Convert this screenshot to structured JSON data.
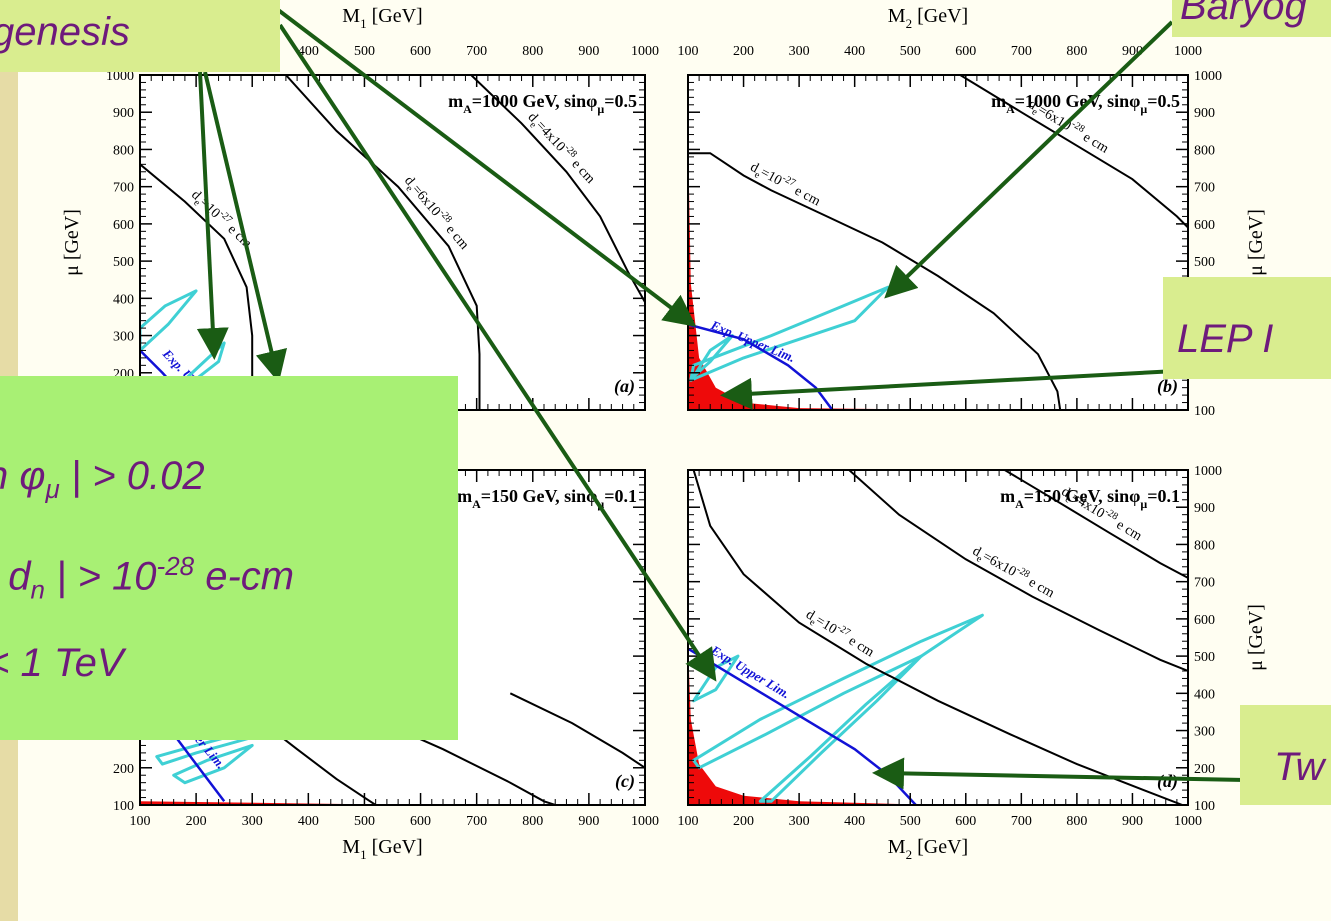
{
  "callouts": {
    "baryogenesis_left": "genesis",
    "baryogenesis_right": "Baryog",
    "lep": "LEP I",
    "two_loop": "Tw"
  },
  "constraints": {
    "line1": {
      "prefix": "n ",
      "symbol": "φ",
      "sub": "μ",
      "suffix": " | > 0.02"
    },
    "line2": {
      "pre": ", d",
      "sub": "n",
      "mid": " | > 10",
      "sup": "-28",
      "post": " e-cm"
    },
    "line3": "< 1 TeV"
  },
  "chart_data": [
    {
      "type": "line",
      "panel_label": "(a)",
      "annotation": "m_A=1000 GeV, sinφ_μ=0.5",
      "xlabel": "M_1  [GeV]",
      "ylabel": "μ  [GeV]",
      "xlim": [
        100,
        1000
      ],
      "ylim": [
        100,
        1000
      ],
      "x_ticks": [
        "100",
        "200",
        "300",
        "400",
        "500",
        "600",
        "700",
        "800",
        "900",
        "1000"
      ],
      "y_ticks": [
        "100",
        "200",
        "300",
        "400",
        "500",
        "600",
        "700",
        "800",
        "900",
        "1000"
      ],
      "contours": [
        {
          "label": "d_e=10^-27 e cm",
          "points": [
            [
              100,
              760
            ],
            [
              180,
              660
            ],
            [
              250,
              560
            ],
            [
              290,
              430
            ],
            [
              300,
              300
            ],
            [
              300,
              100
            ]
          ]
        },
        {
          "label": "d_e=6x10^-28 e cm",
          "points": [
            [
              360,
              1000
            ],
            [
              450,
              850
            ],
            [
              560,
              700
            ],
            [
              650,
              540
            ],
            [
              700,
              380
            ],
            [
              705,
              250
            ],
            [
              705,
              100
            ]
          ]
        },
        {
          "label": "d_e=4x10^-28 e cm",
          "points": [
            [
              690,
              1000
            ],
            [
              780,
              870
            ],
            [
              860,
              740
            ],
            [
              920,
              620
            ],
            [
              970,
              470
            ],
            [
              1000,
              390
            ]
          ]
        }
      ],
      "exp_upper_limit": [
        [
          100,
          260
        ],
        [
          140,
          200
        ],
        [
          170,
          150
        ]
      ],
      "baryogenesis_regions": [
        [
          [
            100,
            320
          ],
          [
            145,
            380
          ],
          [
            200,
            420
          ],
          [
            150,
            330
          ],
          [
            100,
            260
          ]
        ],
        [
          [
            150,
            140
          ],
          [
            200,
            210
          ],
          [
            250,
            280
          ],
          [
            240,
            230
          ],
          [
            180,
            160
          ]
        ]
      ],
      "excluded_region": [
        [
          100,
          100
        ],
        [
          100,
          130
        ],
        [
          140,
          110
        ],
        [
          170,
          100
        ]
      ]
    },
    {
      "type": "line",
      "panel_label": "(b)",
      "annotation": "m_A=1000 GeV, sinφ_μ=0.5",
      "xlabel": "M_2  [GeV]",
      "ylabel": "μ  [GeV]",
      "xlim": [
        100,
        1000
      ],
      "ylim": [
        100,
        1000
      ],
      "x_ticks": [
        "100",
        "200",
        "300",
        "400",
        "500",
        "600",
        "700",
        "800",
        "900",
        "1000"
      ],
      "y_ticks": [
        "100",
        "200",
        "300",
        "400",
        "500",
        "600",
        "700",
        "800",
        "900",
        "1000"
      ],
      "contours": [
        {
          "label": "d_e=10^-27 e cm",
          "points": [
            [
              100,
              790
            ],
            [
              140,
              790
            ],
            [
              160,
              770
            ],
            [
              200,
              730
            ],
            [
              250,
              690
            ],
            [
              350,
              620
            ],
            [
              450,
              550
            ],
            [
              550,
              460
            ],
            [
              650,
              360
            ],
            [
              730,
              250
            ],
            [
              765,
              150
            ],
            [
              770,
              100
            ]
          ]
        },
        {
          "label": "d_e=6x10^-28 e cm",
          "points": [
            [
              590,
              1000
            ],
            [
              700,
              900
            ],
            [
              800,
              810
            ],
            [
              900,
              720
            ],
            [
              980,
              620
            ],
            [
              1000,
              590
            ]
          ]
        }
      ],
      "exp_upper_limit": [
        [
          100,
          330
        ],
        [
          200,
          290
        ],
        [
          280,
          220
        ],
        [
          330,
          160
        ],
        [
          360,
          100
        ]
      ],
      "baryogenesis_regions": [
        [
          [
            105,
            180
          ],
          [
            200,
            240
          ],
          [
            300,
            290
          ],
          [
            400,
            340
          ],
          [
            460,
            430
          ],
          [
            380,
            380
          ],
          [
            250,
            300
          ],
          [
            110,
            220
          ]
        ],
        [
          [
            110,
            190
          ],
          [
            140,
            230
          ],
          [
            180,
            300
          ],
          [
            140,
            260
          ]
        ]
      ],
      "excluded_region": [
        [
          100,
          100
        ],
        [
          100,
          840
        ],
        [
          105,
          440
        ],
        [
          120,
          240
        ],
        [
          150,
          160
        ],
        [
          200,
          120
        ],
        [
          300,
          105
        ],
        [
          600,
          100
        ],
        [
          900,
          100
        ]
      ]
    },
    {
      "type": "line",
      "panel_label": "(c)",
      "annotation": "m_A=150 GeV, sinφ_μ=0.1",
      "xlabel": "M_1  [GeV]",
      "ylabel": "μ  [GeV]",
      "xlim": [
        100,
        1000
      ],
      "ylim": [
        100,
        1000
      ],
      "x_ticks": [
        "100",
        "200",
        "300",
        "400",
        "500",
        "600",
        "700",
        "800",
        "900",
        "1000"
      ],
      "y_ticks": [
        "100",
        "200",
        "300",
        "400",
        "500",
        "600",
        "700",
        "800",
        "900",
        "1000"
      ],
      "contours": [
        {
          "label": "",
          "points": [
            [
              270,
              400
            ],
            [
              320,
              320
            ],
            [
              380,
              250
            ],
            [
              450,
              170
            ],
            [
              500,
              120
            ],
            [
              520,
              100
            ]
          ]
        },
        {
          "label": "",
          "points": [
            [
              420,
              400
            ],
            [
              520,
              330
            ],
            [
              640,
              250
            ],
            [
              760,
              160
            ],
            [
              820,
              110
            ],
            [
              840,
              100
            ]
          ]
        },
        {
          "label": "",
          "points": [
            [
              760,
              400
            ],
            [
              870,
              320
            ],
            [
              960,
              240
            ],
            [
              1000,
              200
            ]
          ]
        }
      ],
      "exp_upper_limit": [
        [
          100,
          390
        ],
        [
          150,
          310
        ],
        [
          200,
          210
        ],
        [
          250,
          110
        ]
      ],
      "baryogenesis_regions": [
        [
          [
            130,
            230
          ],
          [
            200,
            260
          ],
          [
            300,
            300
          ],
          [
            400,
            340
          ],
          [
            320,
            290
          ],
          [
            200,
            240
          ],
          [
            140,
            210
          ]
        ],
        [
          [
            160,
            180
          ],
          [
            220,
            220
          ],
          [
            300,
            260
          ],
          [
            250,
            200
          ],
          [
            180,
            160
          ]
        ]
      ],
      "excluded_region": [
        [
          100,
          100
        ],
        [
          100,
          110
        ],
        [
          200,
          108
        ],
        [
          400,
          104
        ],
        [
          600,
          100
        ]
      ]
    },
    {
      "type": "line",
      "panel_label": "(d)",
      "annotation": "m_A=150 GeV, sinφ_μ=0.1",
      "xlabel": "M_2  [GeV]",
      "ylabel": "μ  [GeV]",
      "xlim": [
        100,
        1000
      ],
      "ylim": [
        100,
        1000
      ],
      "x_ticks": [
        "100",
        "200",
        "300",
        "400",
        "500",
        "600",
        "700",
        "800",
        "900",
        "1000"
      ],
      "y_ticks": [
        "100",
        "200",
        "300",
        "400",
        "500",
        "600",
        "700",
        "800",
        "900",
        "1000"
      ],
      "contours": [
        {
          "label": "d_e=10^-27 e cm",
          "points": [
            [
              110,
              1000
            ],
            [
              140,
              850
            ],
            [
              200,
              720
            ],
            [
              300,
              590
            ],
            [
              420,
              480
            ],
            [
              550,
              380
            ],
            [
              680,
              290
            ],
            [
              800,
              210
            ],
            [
              920,
              140
            ],
            [
              990,
              100
            ]
          ]
        },
        {
          "label": "d_e=6x10^-28 e cm",
          "points": [
            [
              390,
              1000
            ],
            [
              480,
              880
            ],
            [
              600,
              760
            ],
            [
              720,
              660
            ],
            [
              840,
              570
            ],
            [
              950,
              490
            ],
            [
              1000,
              460
            ]
          ]
        },
        {
          "label": "d_e=4x10^-28 e cm",
          "points": [
            [
              670,
              1000
            ],
            [
              760,
              920
            ],
            [
              860,
              830
            ],
            [
              950,
              750
            ],
            [
              1000,
              710
            ]
          ]
        }
      ],
      "exp_upper_limit": [
        [
          100,
          520
        ],
        [
          200,
          430
        ],
        [
          300,
          340
        ],
        [
          400,
          250
        ],
        [
          460,
          180
        ],
        [
          510,
          100
        ]
      ],
      "baryogenesis_regions": [
        [
          [
            110,
            220
          ],
          [
            230,
            330
          ],
          [
            380,
            440
          ],
          [
            520,
            540
          ],
          [
            630,
            610
          ],
          [
            520,
            500
          ],
          [
            380,
            400
          ],
          [
            240,
            290
          ],
          [
            120,
            200
          ]
        ],
        [
          [
            110,
            380
          ],
          [
            150,
            470
          ],
          [
            190,
            500
          ],
          [
            150,
            410
          ]
        ],
        [
          [
            230,
            110
          ],
          [
            320,
            230
          ],
          [
            420,
            370
          ],
          [
            520,
            500
          ],
          [
            440,
            380
          ],
          [
            340,
            240
          ],
          [
            250,
            110
          ]
        ]
      ],
      "excluded_region": [
        [
          100,
          100
        ],
        [
          100,
          530
        ],
        [
          105,
          330
        ],
        [
          120,
          210
        ],
        [
          150,
          150
        ],
        [
          200,
          125
        ],
        [
          300,
          110
        ],
        [
          500,
          102
        ],
        [
          700,
          100
        ]
      ]
    }
  ],
  "colors": {
    "contour": "#000000",
    "exp_upper_limit": "#1212d6",
    "baryogenesis_region": "#3fd0d4",
    "excluded_region": "#ee0a0a",
    "callout_box": "#d9ed8f",
    "constraints_box": "#a8f074",
    "callout_text": "#6e1a7c",
    "arrow": "#1a5c14"
  }
}
